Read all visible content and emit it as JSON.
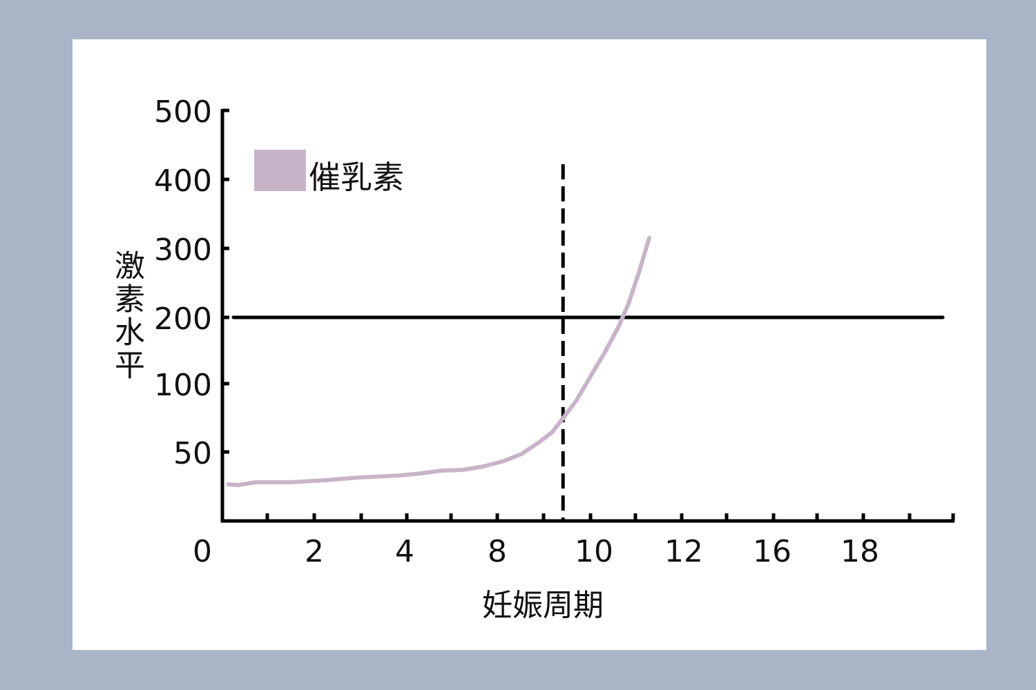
{
  "colors": {
    "background": "#a9b5c6",
    "panel": "#ffffff",
    "series": "#c8b4c8",
    "axis": "#000000"
  },
  "chart_data": {
    "type": "line",
    "title": "",
    "xlabel": "妊娠周期",
    "ylabel": "激素水平",
    "x_tick_labels": [
      "0",
      "2",
      "4",
      "8",
      "10",
      "12",
      "16",
      "18"
    ],
    "y_tick_labels": [
      "50",
      "100",
      "200",
      "300",
      "400",
      "500"
    ],
    "ylim": [
      0,
      500
    ],
    "xlim": [
      0,
      20
    ],
    "grid": false,
    "legend": {
      "placement": "top-left",
      "entries": [
        "催乳素"
      ]
    },
    "series": [
      {
        "name": "催乳素",
        "color": "#c8b4c8",
        "x": [
          0.46,
          0.64,
          0.95,
          1.57,
          2.23,
          2.99,
          3.91,
          4.72,
          5.61,
          6.51,
          7.4,
          8.14,
          8.5,
          8.86,
          9.14,
          9.36,
          9.64,
          9.93,
          10.23,
          10.54,
          10.77,
          11.0,
          11.23
        ],
        "y": [
          26.5,
          26,
          28,
          28,
          29.5,
          31.5,
          33,
          34.5,
          36.5,
          37,
          39.5,
          43.5,
          48.5,
          57,
          64.6,
          74.7,
          87.9,
          111,
          146,
          185,
          220,
          265,
          315
        ]
      }
    ],
    "reference_lines": [
      {
        "orientation": "horizontal",
        "y": 200,
        "style": "solid"
      },
      {
        "orientation": "vertical",
        "x": 9.36,
        "style": "dashed"
      }
    ]
  }
}
